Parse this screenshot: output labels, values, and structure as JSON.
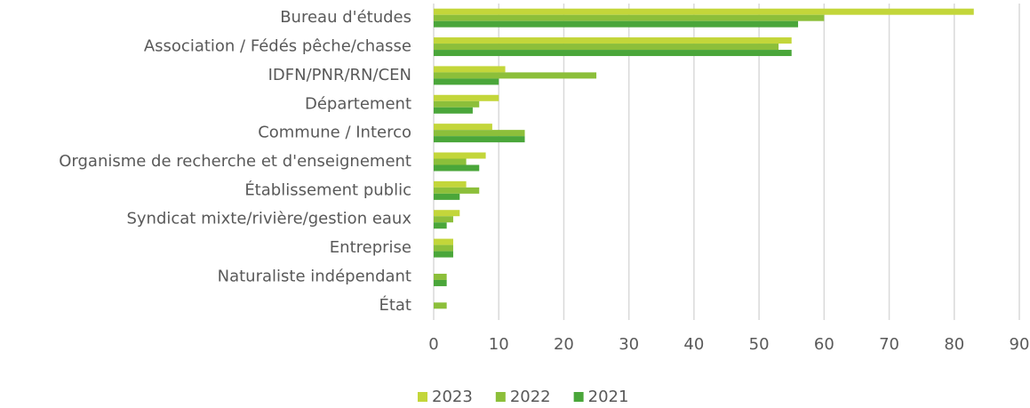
{
  "chart_data": {
    "type": "barh",
    "categories": [
      "Bureau d'études",
      "Association / Fédés pêche/chasse",
      "IDFN/PNR/RN/CEN",
      "Département",
      "Commune / Interco",
      "Organisme de recherche et d'enseignement",
      "Établissement public",
      "Syndicat mixte/rivière/gestion eaux",
      "Entreprise",
      "Naturaliste indépendant",
      "État"
    ],
    "series": [
      {
        "name": "2023",
        "color": "#c3d63a",
        "values": [
          83,
          55,
          11,
          10,
          9,
          8,
          5,
          4,
          3,
          0,
          0
        ]
      },
      {
        "name": "2022",
        "color": "#8cbf3a",
        "values": [
          60,
          53,
          25,
          7,
          14,
          5,
          7,
          3,
          3,
          2,
          2
        ]
      },
      {
        "name": "2021",
        "color": "#4aa63a",
        "values": [
          56,
          55,
          10,
          6,
          14,
          7,
          4,
          2,
          3,
          2,
          0
        ]
      }
    ],
    "xlim": [
      0,
      90
    ],
    "xticks": [
      0,
      10,
      20,
      30,
      40,
      50,
      60,
      70,
      80,
      90
    ],
    "grid": true,
    "legend": "bottom"
  }
}
